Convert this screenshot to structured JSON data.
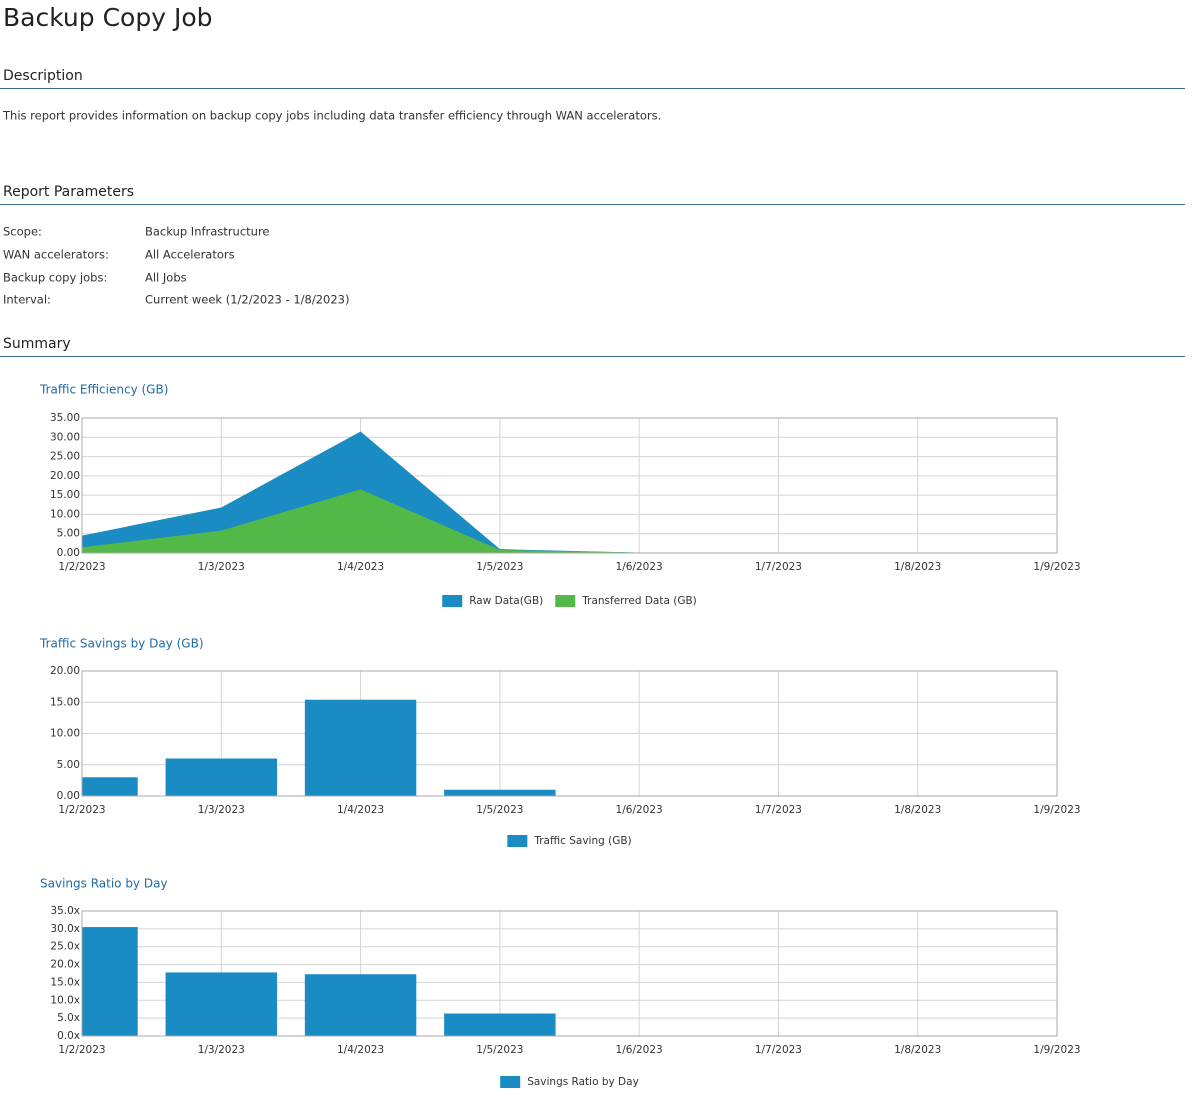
{
  "title": "Backup Copy Job",
  "description": {
    "heading": "Description",
    "text": "This report provides information on backup copy jobs including data transfer efficiency through WAN accelerators."
  },
  "parameters": {
    "heading": "Report Parameters",
    "rows": [
      [
        "Scope:",
        "Backup Infrastructure"
      ],
      [
        "WAN accelerators:",
        "All Accelerators"
      ],
      [
        "Backup copy jobs:",
        "All Jobs"
      ],
      [
        "Interval:",
        "Current week (1/2/2023 - 1/8/2023)"
      ]
    ]
  },
  "summary": {
    "heading": "Summary"
  },
  "chart_data": [
    {
      "type": "area",
      "title": "Traffic Efficiency (GB)",
      "categories": [
        "1/2/2023",
        "1/3/2023",
        "1/4/2023",
        "1/5/2023",
        "1/6/2023",
        "1/7/2023",
        "1/8/2023",
        "1/9/2023"
      ],
      "series": [
        {
          "name": "Raw Data(GB)",
          "color": "#1b8cc3",
          "values": [
            4.5,
            11.8,
            31.5,
            1.0,
            0.1,
            null,
            null,
            null
          ]
        },
        {
          "name": "Transferred Data (GB)",
          "color": "#52b847",
          "values": [
            1.5,
            5.8,
            16.5,
            0.8,
            0.1,
            null,
            null,
            null
          ]
        }
      ],
      "ylim": [
        0,
        35
      ],
      "yticks": [
        {
          "value": 0,
          "label": "0.00"
        },
        {
          "value": 5,
          "label": "5.00"
        },
        {
          "value": 10,
          "label": "10.00"
        },
        {
          "value": 15,
          "label": "15.00"
        },
        {
          "value": 20,
          "label": "20.00"
        },
        {
          "value": 25,
          "label": "25.00"
        },
        {
          "value": 30,
          "label": "30.00"
        },
        {
          "value": 35,
          "label": "35.00"
        }
      ],
      "grid": true
    },
    {
      "type": "bar",
      "title": "Traffic Savings by Day (GB)",
      "categories": [
        "1/2/2023",
        "1/3/2023",
        "1/4/2023",
        "1/5/2023",
        "1/6/2023",
        "1/7/2023",
        "1/8/2023",
        "1/9/2023"
      ],
      "series": [
        {
          "name": "Traffic Saving (GB)",
          "color": "#1b8cc3",
          "values": [
            3.0,
            6.0,
            15.4,
            1.0,
            null,
            null,
            null,
            null
          ]
        }
      ],
      "ylim": [
        0,
        20
      ],
      "yticks": [
        {
          "value": 0,
          "label": "0.00"
        },
        {
          "value": 5,
          "label": "5.00"
        },
        {
          "value": 10,
          "label": "10.00"
        },
        {
          "value": 15,
          "label": "15.00"
        },
        {
          "value": 20,
          "label": "20.00"
        }
      ],
      "grid": true
    },
    {
      "type": "bar",
      "title": "Savings Ratio by Day",
      "categories": [
        "1/2/2023",
        "1/3/2023",
        "1/4/2023",
        "1/5/2023",
        "1/6/2023",
        "1/7/2023",
        "1/8/2023",
        "1/9/2023"
      ],
      "series": [
        {
          "name": "Savings Ratio by Day",
          "color": "#1b8cc3",
          "values": [
            30.5,
            17.8,
            17.3,
            6.3,
            null,
            null,
            null,
            null
          ]
        }
      ],
      "ylim": [
        0,
        35
      ],
      "yticks": [
        {
          "value": 0,
          "label": "0.0x"
        },
        {
          "value": 5,
          "label": "5.0x"
        },
        {
          "value": 10,
          "label": "10.0x"
        },
        {
          "value": 15,
          "label": "15.0x"
        },
        {
          "value": 20,
          "label": "20.0x"
        },
        {
          "value": 25,
          "label": "25.0x"
        },
        {
          "value": 30,
          "label": "30.0x"
        },
        {
          "value": 35,
          "label": "35.0x"
        }
      ],
      "grid": true
    }
  ]
}
